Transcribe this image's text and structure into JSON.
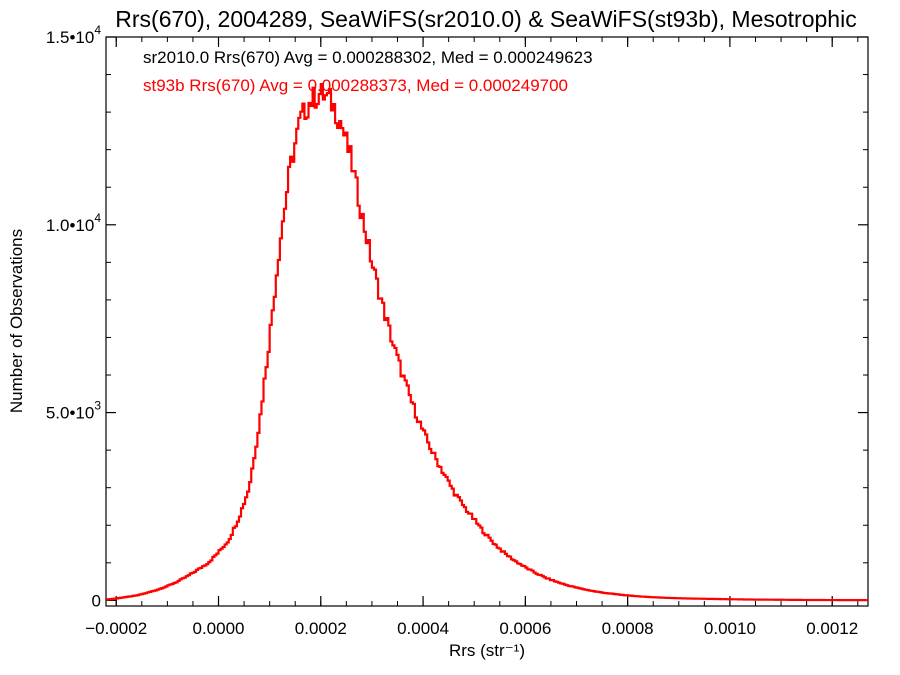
{
  "chart_data": {
    "type": "line",
    "title": "Rrs(670), 2004289, SeaWiFS(sr2010.0) & SeaWiFS(st93b), Mesotrophic",
    "xlabel": "Rrs (str⁻¹)",
    "ylabel": "Number of Observations",
    "xlim": [
      -0.00022,
      0.00127
    ],
    "ylim": [
      -150,
      15000
    ],
    "x_ticks": [
      -0.0002,
      0.0,
      0.0002,
      0.0004,
      0.0006,
      0.0008,
      0.001,
      0.0012
    ],
    "x_tick_labels": [
      "−0.0002",
      "0.0000",
      "0.0002",
      "0.0004",
      "0.0006",
      "0.0008",
      "0.0010",
      "0.0012"
    ],
    "y_ticks": [
      0,
      5000,
      10000,
      15000
    ],
    "y_tick_labels": [
      {
        "mantissa": "0",
        "exp": ""
      },
      {
        "mantissa": "5.0•10",
        "exp": "3"
      },
      {
        "mantissa": "1.0•10",
        "exp": "4"
      },
      {
        "mantissa": "1.5•10",
        "exp": "4"
      }
    ],
    "annotations": [
      {
        "text": "sr2010.0 Rrs(670) Avg = 0.000288302, Med = 0.000249623",
        "color": "#000000"
      },
      {
        "text": "st93b Rrs(670) Avg = 0.000288373, Med = 0.000249700",
        "color": "#ff0000"
      }
    ],
    "series": [
      {
        "color": "#ff0000",
        "x": [
          -0.00022,
          -0.0002,
          -0.00018,
          -0.00016,
          -0.00014,
          -0.00012,
          -0.0001,
          -8e-05,
          -6e-05,
          -4e-05,
          -2e-05,
          0.0,
          2e-05,
          4e-05,
          6e-05,
          8e-05,
          0.0001,
          0.00012,
          0.00014,
          0.00016,
          0.00018,
          0.0002,
          0.00022,
          0.00024,
          0.00026,
          0.00028,
          0.0003,
          0.00032,
          0.00034,
          0.00036,
          0.00038,
          0.0004,
          0.00042,
          0.00044,
          0.00046,
          0.00048,
          0.0005,
          0.00052,
          0.00054,
          0.00056,
          0.00058,
          0.0006,
          0.00062,
          0.00064,
          0.00066,
          0.00068,
          0.0007,
          0.00072,
          0.00074,
          0.00076,
          0.00078,
          0.0008,
          0.00084,
          0.00088,
          0.00092,
          0.00096,
          0.001,
          0.00104,
          0.00108,
          0.00112,
          0.00116,
          0.0012,
          0.00124,
          0.00127
        ],
        "values": [
          20,
          50,
          90,
          130,
          200,
          280,
          380,
          500,
          650,
          820,
          1000,
          1280,
          1600,
          2200,
          3000,
          4700,
          7000,
          9500,
          11500,
          12800,
          13300,
          13500,
          13300,
          12700,
          11700,
          10300,
          9000,
          7900,
          6900,
          6000,
          5200,
          4500,
          3900,
          3400,
          2900,
          2500,
          2150,
          1800,
          1500,
          1250,
          1050,
          880,
          730,
          600,
          500,
          410,
          340,
          280,
          230,
          190,
          160,
          130,
          90,
          65,
          50,
          40,
          30,
          22,
          18,
          14,
          10,
          8,
          6,
          5
        ]
      }
    ]
  }
}
